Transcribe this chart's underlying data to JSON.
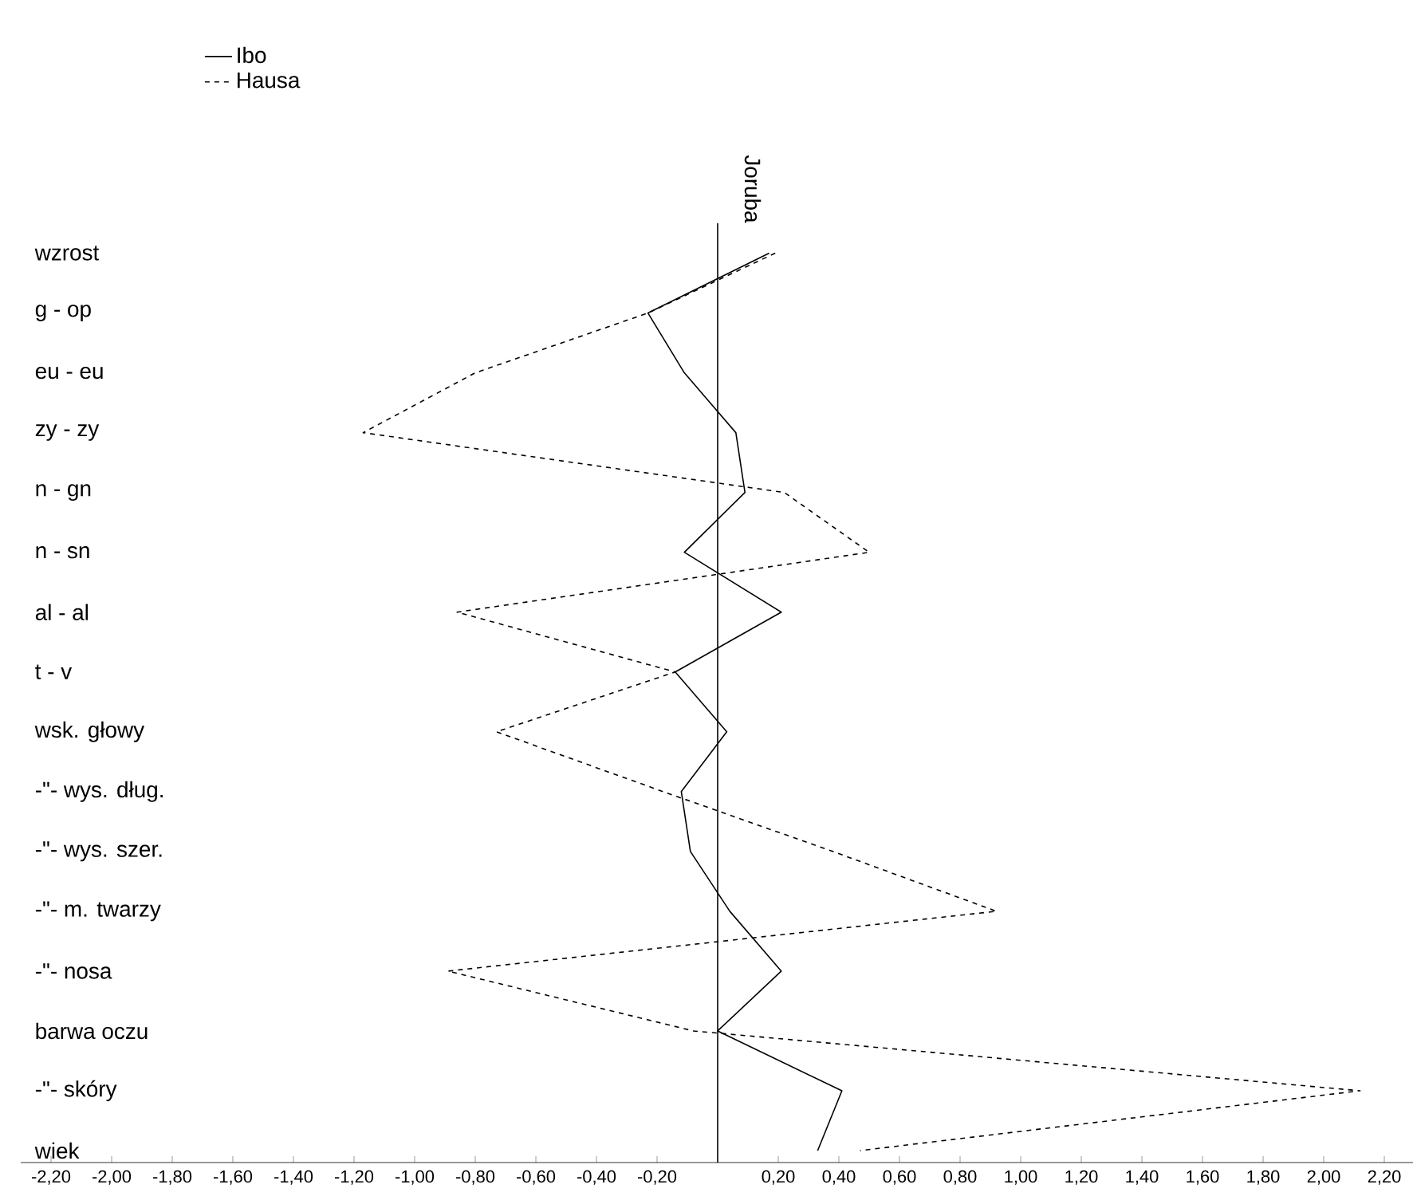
{
  "chart_data": {
    "type": "line",
    "orientation": "horizontal",
    "categories": [
      "wzrost",
      "g - op",
      "eu - eu",
      "zy - zy",
      "n - gn",
      "n - sn",
      "al - al",
      "t - v",
      "wsk. głowy",
      "-\"- wys. dług.",
      "-\"- wys. szer.",
      "-\"- m. twarzy",
      "-\"- nosa",
      "barwa oczu",
      "-\"-      skóry",
      "wiek"
    ],
    "series": [
      {
        "name": "Ibo",
        "color": "#000000",
        "line_style": "solid",
        "values": [
          0.17,
          -0.23,
          -0.11,
          0.06,
          0.09,
          -0.11,
          0.21,
          -0.14,
          0.03,
          -0.12,
          -0.09,
          0.04,
          0.21,
          0.0,
          0.41,
          0.33
        ]
      },
      {
        "name": "Hausa",
        "color": "#000000",
        "line_style": "dashed",
        "values": [
          0.19,
          -0.23,
          -0.8,
          -1.17,
          0.22,
          0.5,
          -0.86,
          -0.14,
          -0.73,
          -0.18,
          0.38,
          0.92,
          -0.89,
          -0.08,
          2.12,
          0.47
        ]
      }
    ],
    "xlim": [
      -2.3,
      2.3
    ],
    "xticks": [
      {
        "value": -2.2,
        "label": "-2,20"
      },
      {
        "value": -2.0,
        "label": "-2,00"
      },
      {
        "value": -1.8,
        "label": "-1,80"
      },
      {
        "value": -1.6,
        "label": "-1,60"
      },
      {
        "value": -1.4,
        "label": "-1,40"
      },
      {
        "value": -1.2,
        "label": "-1,20"
      },
      {
        "value": -1.0,
        "label": "-1,00"
      },
      {
        "value": -0.8,
        "label": "-0,80"
      },
      {
        "value": -0.6,
        "label": "-0,60"
      },
      {
        "value": -0.4,
        "label": "-0,40"
      },
      {
        "value": -0.2,
        "label": "-0,20"
      },
      {
        "value": 0.2,
        "label": "0,20"
      },
      {
        "value": 0.4,
        "label": "0,40"
      },
      {
        "value": 0.6,
        "label": "0,60"
      },
      {
        "value": 0.8,
        "label": "0,80"
      },
      {
        "value": 1.0,
        "label": "1,00"
      },
      {
        "value": 1.2,
        "label": "1,20"
      },
      {
        "value": 1.4,
        "label": "1,40"
      },
      {
        "value": 1.6,
        "label": "1,60"
      },
      {
        "value": 1.8,
        "label": "1,80"
      },
      {
        "value": 2.0,
        "label": "2,00"
      },
      {
        "value": 2.2,
        "label": "2,20"
      }
    ],
    "ref_lines": [
      {
        "axis": "x",
        "value": 0,
        "label": "Joruba"
      }
    ],
    "legend": "top left",
    "grid": false,
    "marker": "none"
  }
}
